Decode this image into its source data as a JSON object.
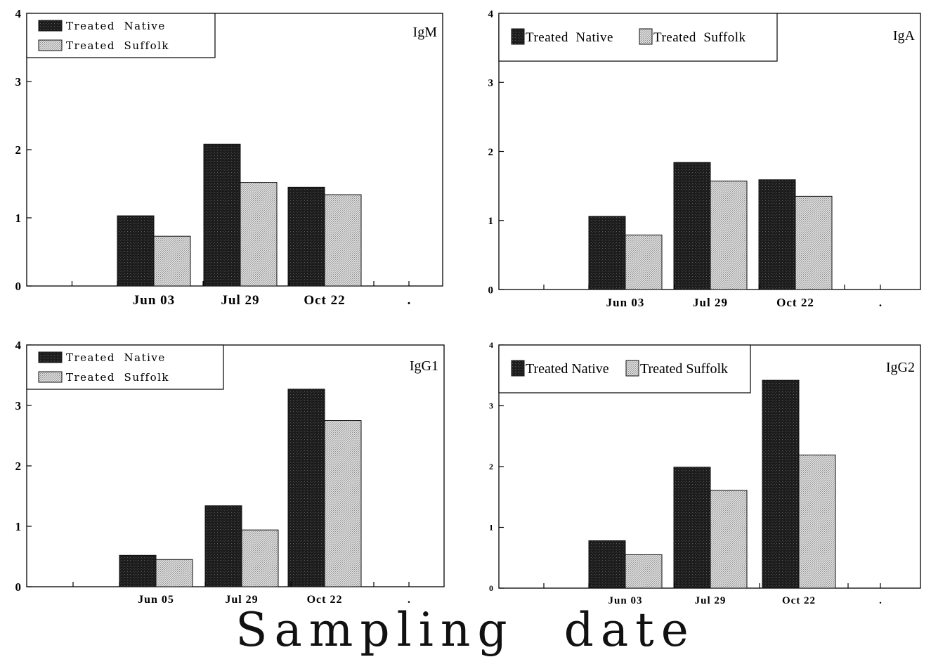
{
  "figure": {
    "xlabel": "Sampling date"
  },
  "colors": {
    "native": "#1a1a1a",
    "suffolk": "#c4c4c4",
    "axis": "#000000"
  },
  "chart_data": [
    {
      "type": "bar",
      "panel_label": "IgM",
      "categories": [
        "Jun 03",
        "Jul 29",
        "Oct 22"
      ],
      "trailing_tick": ".",
      "yticks": [
        "0",
        "1",
        "2",
        "3",
        "4"
      ],
      "ylim": [
        0,
        4
      ],
      "legend": "top-left",
      "series": [
        {
          "name": "Treated  Native",
          "values": [
            1.03,
            2.08,
            1.45
          ]
        },
        {
          "name": "Treated  Suffolk",
          "values": [
            0.73,
            1.52,
            1.34
          ]
        }
      ]
    },
    {
      "type": "bar",
      "panel_label": "IgA",
      "categories": [
        "Jun 03",
        "Jul 29",
        "Oct 22"
      ],
      "trailing_tick": ".",
      "yticks": [
        "0",
        "1",
        "2",
        "3",
        "4"
      ],
      "ylim": [
        0,
        4
      ],
      "legend": "top-left",
      "series": [
        {
          "name": "Treated  Native",
          "values": [
            1.06,
            1.84,
            1.59
          ]
        },
        {
          "name": "Treated  Suffolk",
          "values": [
            0.79,
            1.57,
            1.35
          ]
        }
      ]
    },
    {
      "type": "bar",
      "panel_label": "IgG1",
      "categories": [
        "Jun 05",
        "Jul 29",
        "Oct 22"
      ],
      "trailing_tick": ".",
      "yticks": [
        "0",
        "1",
        "2",
        "3",
        "4"
      ],
      "ylim": [
        0,
        4
      ],
      "legend": "top-left",
      "series": [
        {
          "name": "Treated  Native",
          "values": [
            0.52,
            1.34,
            3.27
          ]
        },
        {
          "name": "Treated  Suffolk",
          "values": [
            0.45,
            0.94,
            2.75
          ]
        }
      ]
    },
    {
      "type": "bar",
      "panel_label": "IgG2",
      "categories": [
        "Jun 03",
        "Jul 29",
        "Oct 22"
      ],
      "trailing_tick": ".",
      "yticks": [
        "0",
        "1",
        "2",
        "3",
        "4"
      ],
      "ylim": [
        0,
        4
      ],
      "legend": "top-left",
      "series": [
        {
          "name": "Treated Native",
          "values": [
            0.78,
            1.99,
            3.42
          ]
        },
        {
          "name": "Treated Suffolk",
          "values": [
            0.55,
            1.61,
            2.19
          ]
        }
      ]
    }
  ]
}
